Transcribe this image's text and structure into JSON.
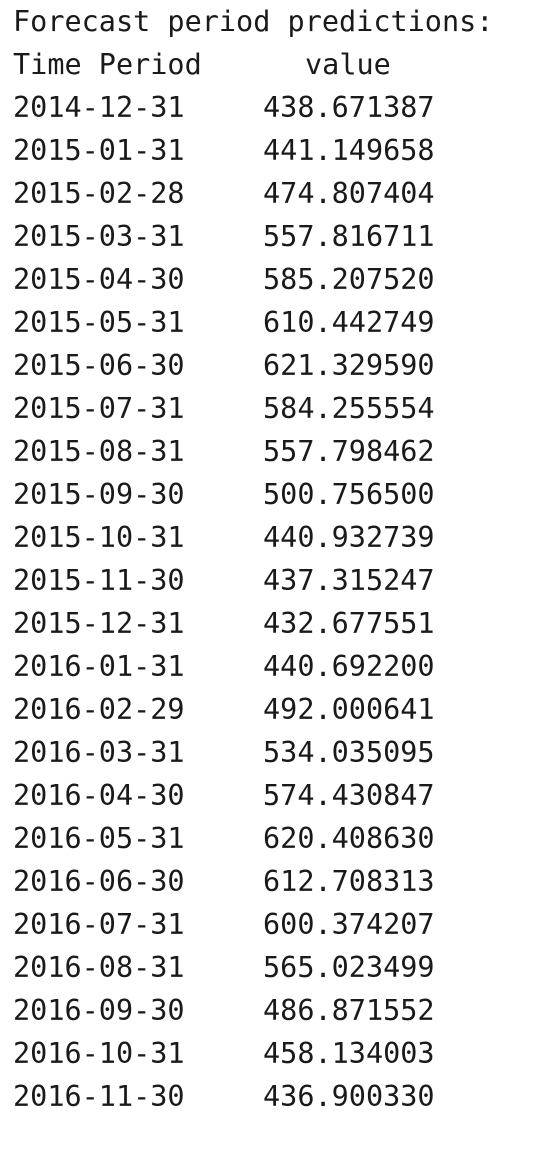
{
  "output": {
    "title": "Forecast period predictions:",
    "columns": {
      "period": "Time Period",
      "value": "value"
    },
    "rows": [
      {
        "date": "2014-12-31",
        "value": "438.671387"
      },
      {
        "date": "2015-01-31",
        "value": "441.149658"
      },
      {
        "date": "2015-02-28",
        "value": "474.807404"
      },
      {
        "date": "2015-03-31",
        "value": "557.816711"
      },
      {
        "date": "2015-04-30",
        "value": "585.207520"
      },
      {
        "date": "2015-05-31",
        "value": "610.442749"
      },
      {
        "date": "2015-06-30",
        "value": "621.329590"
      },
      {
        "date": "2015-07-31",
        "value": "584.255554"
      },
      {
        "date": "2015-08-31",
        "value": "557.798462"
      },
      {
        "date": "2015-09-30",
        "value": "500.756500"
      },
      {
        "date": "2015-10-31",
        "value": "440.932739"
      },
      {
        "date": "2015-11-30",
        "value": "437.315247"
      },
      {
        "date": "2015-12-31",
        "value": "432.677551"
      },
      {
        "date": "2016-01-31",
        "value": "440.692200"
      },
      {
        "date": "2016-02-29",
        "value": "492.000641"
      },
      {
        "date": "2016-03-31",
        "value": "534.035095"
      },
      {
        "date": "2016-04-30",
        "value": "574.430847"
      },
      {
        "date": "2016-05-31",
        "value": "620.408630"
      },
      {
        "date": "2016-06-30",
        "value": "612.708313"
      },
      {
        "date": "2016-07-31",
        "value": "600.374207"
      },
      {
        "date": "2016-08-31",
        "value": "565.023499"
      },
      {
        "date": "2016-09-30",
        "value": "486.871552"
      },
      {
        "date": "2016-10-31",
        "value": "458.134003"
      },
      {
        "date": "2016-11-30",
        "value": "436.900330"
      }
    ]
  }
}
